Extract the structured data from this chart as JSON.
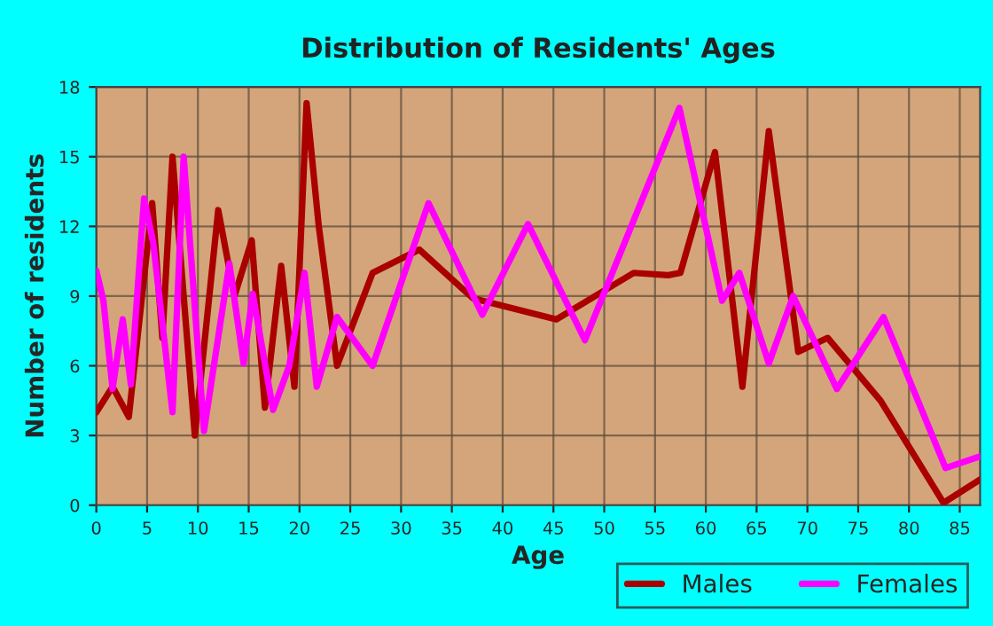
{
  "chart_data": {
    "type": "line",
    "title": "Distribution of Residents' Ages",
    "xlabel": "Age",
    "ylabel": "Number of residents",
    "xlim": [
      0,
      87
    ],
    "xticks": [
      0,
      5,
      10,
      15,
      20,
      25,
      30,
      35,
      40,
      45,
      50,
      55,
      60,
      65,
      70,
      75,
      80,
      85
    ],
    "ylim": [
      0,
      18
    ],
    "yticks": [
      0,
      3,
      6,
      9,
      12,
      15,
      18
    ],
    "grid": true,
    "legend": "bottom",
    "line_style": "solid",
    "marker": "none",
    "series": [
      {
        "name": "Males",
        "color": "#aa0000",
        "x": [
          0,
          1.6,
          3.2,
          5.5,
          6.5,
          7.5,
          9.7,
          12,
          13.6,
          15.3,
          16.6,
          18.2,
          19.5,
          20.7,
          21.9,
          23.7,
          27.2,
          31.8,
          37.1,
          45.3,
          52.9,
          56.3,
          57.5,
          60.9,
          63.6,
          66.2,
          69.1,
          72,
          77.2,
          83.4,
          87
        ],
        "values": [
          4,
          5.1,
          3.8,
          13,
          7.2,
          15,
          3,
          12.7,
          9,
          11.4,
          4.2,
          10.3,
          5.1,
          17.3,
          12,
          6,
          10,
          11,
          8.9,
          8,
          10,
          9.9,
          10,
          15.2,
          5.1,
          16.1,
          6.6,
          7.2,
          4.5,
          0.1,
          1.1
        ]
      },
      {
        "name": "Females",
        "color": "#ff00ff",
        "x": [
          0,
          0.7,
          1.6,
          2.6,
          3.4,
          4.7,
          5.6,
          7.5,
          8.6,
          10.6,
          13.1,
          14.5,
          15.4,
          17.4,
          19,
          20.5,
          21.7,
          23.7,
          27.2,
          32.7,
          38,
          42.5,
          48.1,
          57.4,
          61.6,
          63.3,
          66.2,
          68.6,
          72.9,
          77.5,
          83.6,
          87
        ],
        "values": [
          10.1,
          8.8,
          5,
          8,
          5.2,
          13.2,
          11.3,
          4,
          15,
          3.2,
          10.4,
          6.1,
          9.1,
          4.1,
          6,
          10,
          5.1,
          8.1,
          6,
          13,
          8.2,
          12.1,
          7.1,
          17.1,
          8.8,
          10,
          6.1,
          9,
          5,
          8.1,
          1.6,
          2.1
        ]
      }
    ]
  }
}
